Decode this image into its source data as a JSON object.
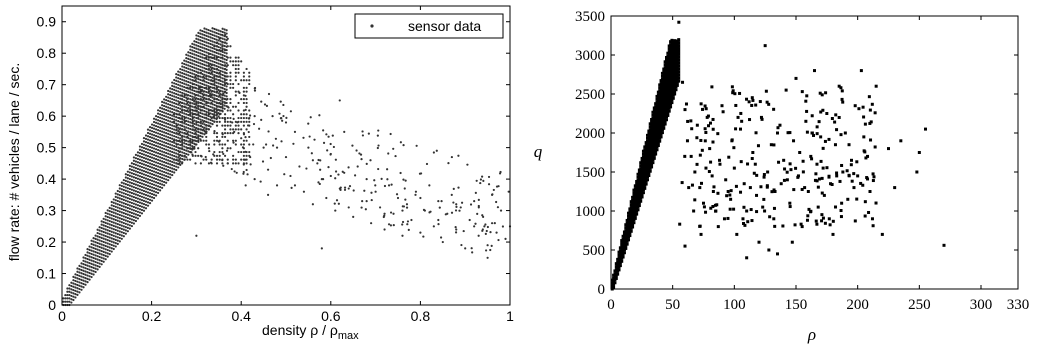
{
  "chart_data": [
    {
      "type": "scatter",
      "title": "",
      "xlabel": "density ρ / ρ",
      "xlabel_subscript": "max",
      "ylabel": "flow rate: # vehicles / lane / sec.",
      "xlim": [
        0,
        1
      ],
      "ylim": [
        0,
        0.95
      ],
      "xticks": [
        "0",
        "0.2",
        "0.4",
        "0.6",
        "0.8",
        "1"
      ],
      "yticks": [
        "0",
        "0.1",
        "0.2",
        "0.3",
        "0.4",
        "0.5",
        "0.6",
        "0.7",
        "0.8",
        "0.9"
      ],
      "legend": {
        "label": "sensor data",
        "position": "top-right"
      },
      "marker_color": "#333333",
      "series": [
        {
          "name": "sensor data",
          "description_free_flow_branch": {
            "x_range": [
              0,
              0.37
            ],
            "slope_min": 1.8,
            "slope_max": 2.8
          },
          "peak": {
            "x": 0.36,
            "y": 0.87
          },
          "congested_points": [
            [
              0.3,
              0.58
            ],
            [
              0.32,
              0.55
            ],
            [
              0.34,
              0.62
            ],
            [
              0.35,
              0.52
            ],
            [
              0.36,
              0.48
            ],
            [
              0.37,
              0.45
            ],
            [
              0.38,
              0.58
            ],
            [
              0.39,
              0.42
            ],
            [
              0.4,
              0.53
            ],
            [
              0.41,
              0.62
            ],
            [
              0.42,
              0.47
            ],
            [
              0.43,
              0.4
            ],
            [
              0.44,
              0.56
            ],
            [
              0.45,
              0.5
            ],
            [
              0.46,
              0.43
            ],
            [
              0.47,
              0.6
            ],
            [
              0.48,
              0.38
            ],
            [
              0.49,
              0.52
            ],
            [
              0.5,
              0.47
            ],
            [
              0.51,
              0.41
            ],
            [
              0.52,
              0.55
            ],
            [
              0.53,
              0.44
            ],
            [
              0.54,
              0.36
            ],
            [
              0.55,
              0.5
            ],
            [
              0.56,
              0.32
            ],
            [
              0.57,
              0.45
            ],
            [
              0.58,
              0.4
            ],
            [
              0.59,
              0.34
            ],
            [
              0.6,
              0.48
            ],
            [
              0.61,
              0.3
            ],
            [
              0.62,
              0.65
            ],
            [
              0.63,
              0.42
            ],
            [
              0.64,
              0.37
            ],
            [
              0.65,
              0.28
            ],
            [
              0.66,
              0.44
            ],
            [
              0.67,
              0.33
            ],
            [
              0.68,
              0.4
            ],
            [
              0.69,
              0.26
            ],
            [
              0.7,
              0.36
            ],
            [
              0.71,
              0.31
            ],
            [
              0.72,
              0.24
            ],
            [
              0.73,
              0.38
            ],
            [
              0.74,
              0.29
            ],
            [
              0.75,
              0.34
            ],
            [
              0.76,
              0.22
            ],
            [
              0.77,
              0.32
            ],
            [
              0.78,
              0.27
            ],
            [
              0.79,
              0.36
            ],
            [
              0.8,
              0.23
            ],
            [
              0.81,
              0.3
            ],
            [
              0.82,
              0.38
            ],
            [
              0.83,
              0.25
            ],
            [
              0.84,
              0.33
            ],
            [
              0.85,
              0.2
            ],
            [
              0.86,
              0.29
            ],
            [
              0.87,
              0.35
            ],
            [
              0.88,
              0.24
            ],
            [
              0.89,
              0.31
            ],
            [
              0.9,
              0.18
            ],
            [
              0.91,
              0.27
            ],
            [
              0.92,
              0.33
            ],
            [
              0.93,
              0.22
            ],
            [
              0.94,
              0.28
            ],
            [
              0.95,
              0.19
            ],
            [
              0.96,
              0.26
            ],
            [
              0.97,
              0.23
            ],
            [
              0.98,
              0.3
            ],
            [
              0.99,
              0.21
            ],
            [
              0.3,
              0.22
            ],
            [
              0.43,
              0.6
            ],
            [
              0.48,
              0.5
            ],
            [
              0.52,
              0.38
            ],
            [
              0.56,
              0.46
            ],
            [
              0.6,
              0.41
            ],
            [
              0.64,
              0.31
            ],
            [
              0.68,
              0.33
            ],
            [
              0.72,
              0.29
            ],
            [
              0.76,
              0.3
            ],
            [
              0.8,
              0.34
            ],
            [
              0.84,
              0.27
            ],
            [
              0.88,
              0.32
            ],
            [
              0.92,
              0.25
            ],
            [
              0.96,
              0.35
            ],
            [
              1.0,
              0.25
            ],
            [
              0.58,
              0.18
            ],
            [
              0.95,
              0.15
            ],
            [
              0.63,
              0.55
            ],
            [
              0.5,
              0.58
            ],
            [
              0.46,
              0.35
            ],
            [
              0.41,
              0.38
            ]
          ]
        }
      ]
    },
    {
      "type": "scatter",
      "title": "",
      "xlabel": "ρ",
      "ylabel": "q",
      "xlim": [
        0,
        330
      ],
      "ylim": [
        0,
        3500
      ],
      "xticks": [
        "0",
        "50",
        "100",
        "150",
        "200",
        "250",
        "300",
        "330"
      ],
      "yticks": [
        "0",
        "500",
        "1000",
        "1500",
        "2000",
        "2500",
        "3000",
        "3500"
      ],
      "marker_color": "#000000",
      "series": [
        {
          "name": "",
          "description_free_flow_branch": {
            "x_range": [
              0,
              55
            ],
            "slope_min": 50,
            "slope_max": 65
          },
          "congested_points": [
            [
              55,
              3420
            ],
            [
              58,
              2650
            ],
            [
              60,
              2300
            ],
            [
              62,
              1900
            ],
            [
              65,
              1700
            ],
            [
              68,
              1500
            ],
            [
              70,
              2100
            ],
            [
              72,
              1300
            ],
            [
              75,
              1100
            ],
            [
              78,
              2200
            ],
            [
              80,
              1800
            ],
            [
              82,
              1450
            ],
            [
              85,
              1000
            ],
            [
              88,
              1650
            ],
            [
              90,
              2350
            ],
            [
              92,
              900
            ],
            [
              95,
              1250
            ],
            [
              98,
              1900
            ],
            [
              100,
              1550
            ],
            [
              102,
              700
            ],
            [
              105,
              2050
            ],
            [
              108,
              1350
            ],
            [
              110,
              1000
            ],
            [
              112,
              2400
            ],
            [
              115,
              1750
            ],
            [
              118,
              1200
            ],
            [
              120,
              600
            ],
            [
              122,
              2200
            ],
            [
              125,
              3120
            ],
            [
              127,
              1500
            ],
            [
              130,
              1850
            ],
            [
              132,
              900
            ],
            [
              135,
              2000
            ],
            [
              138,
              1350
            ],
            [
              140,
              1650
            ],
            [
              142,
              2550
            ],
            [
              145,
              1100
            ],
            [
              148,
              1900
            ],
            [
              150,
              2700
            ],
            [
              152,
              1450
            ],
            [
              155,
              800
            ],
            [
              158,
              2150
            ],
            [
              160,
              1250
            ],
            [
              162,
              1700
            ],
            [
              165,
              2800
            ],
            [
              168,
              1050
            ],
            [
              170,
              1950
            ],
            [
              172,
              1550
            ],
            [
              175,
              2250
            ],
            [
              178,
              1350
            ],
            [
              180,
              700
            ],
            [
              182,
              1850
            ],
            [
              185,
              2600
            ],
            [
              188,
              1500
            ],
            [
              190,
              2000
            ],
            [
              192,
              1150
            ],
            [
              195,
              1650
            ],
            [
              198,
              2350
            ],
            [
              200,
              1450
            ],
            [
              205,
              1950
            ],
            [
              210,
              1250
            ],
            [
              215,
              2600
            ],
            [
              220,
              700
            ],
            [
              225,
              1800
            ],
            [
              235,
              1900
            ],
            [
              250,
              1750
            ],
            [
              255,
              2050
            ],
            [
              270,
              560
            ],
            [
              63,
              1300
            ],
            [
              67,
              1000
            ],
            [
              73,
              700
            ],
            [
              77,
              1550
            ],
            [
              83,
              1250
            ],
            [
              87,
              800
            ],
            [
              93,
              1400
            ],
            [
              97,
              1150
            ],
            [
              103,
              2200
            ],
            [
              107,
              900
            ],
            [
              113,
              1300
            ],
            [
              117,
              1600
            ],
            [
              123,
              1050
            ],
            [
              128,
              500
            ],
            [
              133,
              1250
            ],
            [
              137,
              2100
            ],
            [
              143,
              1400
            ],
            [
              147,
              600
            ],
            [
              153,
              1750
            ],
            [
              157,
              1300
            ],
            [
              163,
              2000
            ],
            [
              167,
              1600
            ],
            [
              173,
              1200
            ],
            [
              177,
              900
            ],
            [
              183,
              1450
            ],
            [
              187,
              1100
            ],
            [
              193,
              1850
            ],
            [
              197,
              1300
            ],
            [
              203,
              2800
            ],
            [
              208,
              1700
            ],
            [
              212,
              900
            ],
            [
              230,
              1300
            ],
            [
              248,
              1500
            ],
            [
              60,
              550
            ],
            [
              110,
              400
            ],
            [
              135,
              450
            ]
          ]
        }
      ]
    }
  ]
}
